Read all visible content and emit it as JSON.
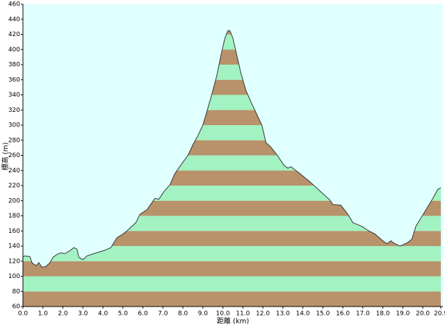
{
  "chart_data": {
    "type": "area",
    "xlabel": "距離 (km)",
    "ylabel": "標高 (m)",
    "x": [
      0.0,
      0.1,
      0.35,
      0.45,
      0.65,
      0.8,
      0.95,
      1.15,
      1.35,
      1.5,
      1.7,
      1.9,
      2.1,
      2.35,
      2.55,
      2.7,
      2.8,
      3.0,
      3.2,
      3.55,
      4.05,
      4.4,
      4.7,
      4.95,
      5.2,
      5.65,
      5.85,
      6.2,
      6.6,
      6.8,
      7.05,
      7.35,
      7.6,
      7.95,
      8.25,
      8.5,
      8.75,
      9.0,
      9.2,
      9.45,
      9.7,
      9.9,
      10.1,
      10.25,
      10.35,
      10.5,
      10.7,
      10.9,
      11.15,
      11.45,
      11.7,
      11.95,
      12.15,
      12.4,
      12.75,
      13.05,
      13.25,
      13.4,
      13.8,
      14.35,
      14.85,
      15.35,
      15.5,
      15.9,
      16.25,
      16.5,
      16.95,
      17.3,
      17.6,
      17.95,
      18.2,
      18.4,
      18.55,
      18.85,
      19.2,
      19.45,
      19.65,
      19.95,
      20.2,
      20.5,
      20.75,
      20.9
    ],
    "values": [
      126,
      127,
      126,
      118,
      114,
      118,
      112,
      113,
      118,
      125,
      129,
      131,
      130,
      134,
      138,
      136,
      125,
      122,
      127,
      130,
      134,
      138,
      151,
      155,
      160,
      171,
      182,
      188,
      203,
      202,
      212,
      221,
      236,
      249,
      260,
      274,
      286,
      300,
      318,
      341,
      366,
      392,
      415,
      425,
      425,
      415,
      392,
      369,
      346,
      328,
      314,
      300,
      277,
      271,
      259,
      247,
      243,
      245,
      237,
      225,
      213,
      201,
      195,
      194,
      182,
      171,
      166,
      160,
      156,
      148,
      143,
      147,
      144,
      140,
      144,
      149,
      166,
      179,
      190,
      203,
      215,
      217
    ],
    "xlim": [
      0,
      20.9
    ],
    "xticks": [
      {
        "value": 0,
        "label": "0.0"
      },
      {
        "value": 1,
        "label": "1.0"
      },
      {
        "value": 2,
        "label": "2.0"
      },
      {
        "value": 3,
        "label": "3.0"
      },
      {
        "value": 4,
        "label": "4.0"
      },
      {
        "value": 5,
        "label": "5.0"
      },
      {
        "value": 6,
        "label": "6.0"
      },
      {
        "value": 7,
        "label": "7.0"
      },
      {
        "value": 8,
        "label": "8.0"
      },
      {
        "value": 9,
        "label": "9.0"
      },
      {
        "value": 10,
        "label": "10.0"
      },
      {
        "value": 11,
        "label": "11.0"
      },
      {
        "value": 12,
        "label": "12.0"
      },
      {
        "value": 13,
        "label": "13.0"
      },
      {
        "value": 14,
        "label": "14.0"
      },
      {
        "value": 15,
        "label": "15.0"
      },
      {
        "value": 16,
        "label": "16.0"
      },
      {
        "value": 17,
        "label": "17.0"
      },
      {
        "value": 18,
        "label": "18.0"
      },
      {
        "value": 19,
        "label": "19.0"
      },
      {
        "value": 20,
        "label": "20.0"
      },
      20.9
    ],
    "ylim": [
      60,
      460
    ],
    "yticks": [
      60,
      80,
      100,
      120,
      140,
      160,
      180,
      200,
      220,
      240,
      260,
      280,
      300,
      320,
      340,
      360,
      380,
      400,
      420,
      440,
      460
    ],
    "stripe_colors": [
      "#b8926a",
      "#a2f2c2"
    ],
    "background": "#e0ffff",
    "line_color": "#333333"
  }
}
